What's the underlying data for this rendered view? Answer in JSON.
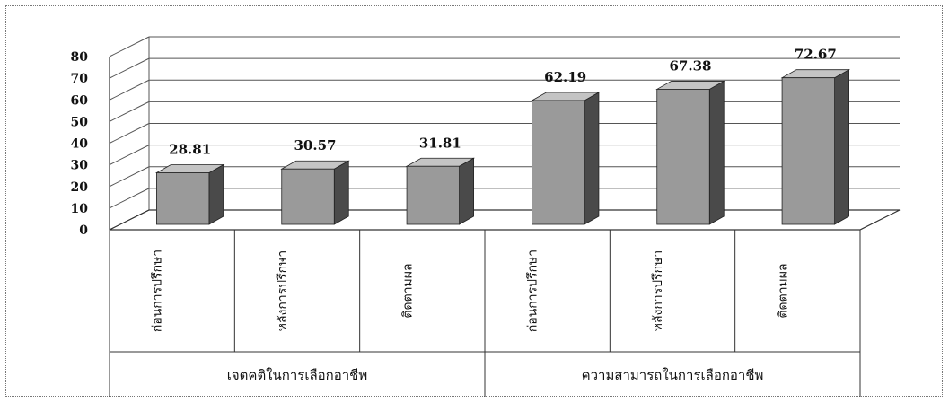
{
  "chart_data": {
    "type": "bar",
    "title": "",
    "xlabel": "",
    "ylabel": "",
    "ylim": [
      0,
      80
    ],
    "yticks": [
      0,
      10,
      20,
      30,
      40,
      50,
      60,
      70,
      80
    ],
    "grid": true,
    "three_d": true,
    "groups": [
      {
        "label": "เจตคติในการเลือกอาชีพ",
        "categories": [
          "ก่อนการปรึกษา",
          "หลังการปรึกษา",
          "ติดตามผล"
        ]
      },
      {
        "label": "ความสามารถในการเลือกอาชีพ",
        "categories": [
          "ก่อนการปรึกษา",
          "หลังการปรึกษา",
          "ติดตามผล"
        ]
      }
    ],
    "categories": [
      "ก่อนการปรึกษา",
      "หลังการปรึกษา",
      "ติดตามผล",
      "ก่อนการปรึกษา",
      "หลังการปรึกษา",
      "ติดตามผล"
    ],
    "values": [
      28.81,
      30.57,
      31.81,
      62.19,
      67.38,
      72.67
    ],
    "data_labels": [
      "28.81",
      "30.57",
      "31.81",
      "62.19",
      "67.38",
      "72.67"
    ],
    "colors": {
      "bar_front": "#9a9a9a",
      "bar_side": "#4a4a4a",
      "bar_top": "#c4c4c4",
      "grid": "#555555"
    }
  }
}
